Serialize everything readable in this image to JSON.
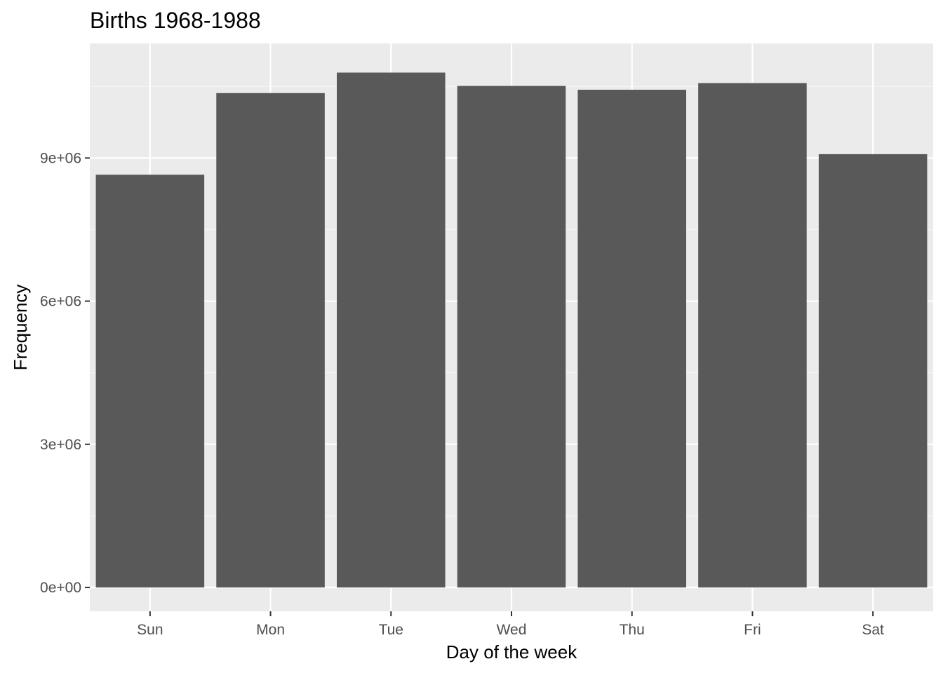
{
  "chart_data": {
    "type": "bar",
    "title": "Births 1968-1988",
    "xlabel": "Day of the week",
    "ylabel": "Frequency",
    "categories": [
      "Sun",
      "Mon",
      "Tue",
      "Wed",
      "Thu",
      "Fri",
      "Sat"
    ],
    "values": [
      8650000,
      10360000,
      10790000,
      10510000,
      10430000,
      10570000,
      9080000
    ],
    "ylim": [
      -500000,
      11400000
    ],
    "yticks": [
      0,
      3000000,
      6000000,
      9000000
    ],
    "ytick_labels": [
      "0e+00",
      "3e+06",
      "6e+06",
      "9e+06"
    ],
    "grid": true,
    "legend": "none",
    "colors": {
      "bar": "#595959",
      "panel": "#ebebeb",
      "grid_major": "#ffffff",
      "grid_minor": "#f5f5f5",
      "tick": "#333333"
    }
  }
}
